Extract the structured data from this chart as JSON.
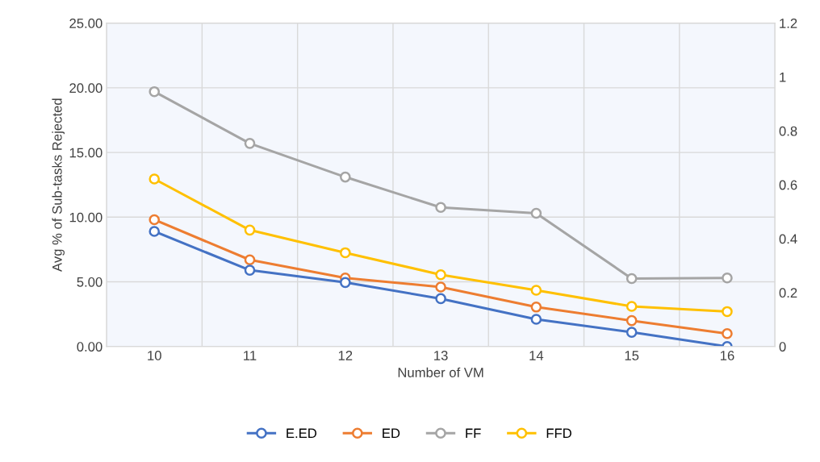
{
  "chart_data": {
    "type": "line",
    "xlabel": "Number of VM",
    "ylabel": "Avg % of Sub-tasks Rejected",
    "categories": [
      "10",
      "11",
      "12",
      "13",
      "14",
      "15",
      "16"
    ],
    "series": [
      {
        "name": "E.ED",
        "color": "#4472c4",
        "values": [
          8.9,
          5.9,
          4.95,
          3.7,
          2.1,
          1.1,
          0
        ]
      },
      {
        "name": "ED",
        "color": "#ed7d31",
        "values": [
          9.8,
          6.7,
          5.3,
          4.6,
          3.05,
          2.0,
          1.0
        ]
      },
      {
        "name": "FF",
        "color": "#a5a5a5",
        "values": [
          19.7,
          15.7,
          13.1,
          10.75,
          10.3,
          5.25,
          5.3
        ]
      },
      {
        "name": "FFD",
        "color": "#ffc000",
        "values": [
          12.95,
          9.0,
          7.25,
          5.55,
          4.35,
          3.1,
          2.7
        ]
      }
    ],
    "ylim": [
      0,
      25
    ],
    "yticks": [
      {
        "value": 0,
        "label": "0.00"
      },
      {
        "value": 5,
        "label": "5.00"
      },
      {
        "value": 10,
        "label": "10.00"
      },
      {
        "value": 15,
        "label": "15.00"
      },
      {
        "value": 20,
        "label": "20.00"
      },
      {
        "value": 25,
        "label": "25.00"
      }
    ],
    "y2lim": [
      0,
      1.2
    ],
    "y2ticks": [
      0,
      0.2,
      0.4,
      0.6,
      0.8,
      1,
      1.2
    ],
    "grid": true,
    "legend": "bottom",
    "marker": "circle",
    "line_style": "solid"
  }
}
